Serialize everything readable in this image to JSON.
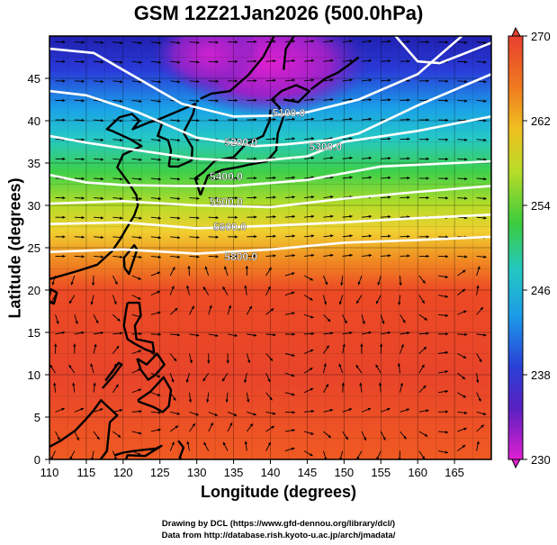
{
  "title": "GSM 12Z21Jan2026 (500.0hPa)",
  "x_axis": {
    "label": "Longitude (degrees)",
    "min": 110,
    "max": 170,
    "ticks": [
      "110",
      "115",
      "120",
      "125",
      "130",
      "135",
      "140",
      "145",
      "150",
      "155",
      "160",
      "165"
    ],
    "tick_values": [
      110,
      115,
      120,
      125,
      130,
      135,
      140,
      145,
      150,
      155,
      160,
      165
    ]
  },
  "y_axis": {
    "label": "Latitude (degrees)",
    "min": 0,
    "max": 50,
    "ticks": [
      "0",
      "5",
      "10",
      "15",
      "20",
      "25",
      "30",
      "35",
      "40",
      "45"
    ],
    "tick_values": [
      0,
      5,
      10,
      15,
      20,
      25,
      30,
      35,
      40,
      45
    ]
  },
  "colorbar": {
    "ticks": [
      "270",
      "262",
      "254",
      "246",
      "238",
      "230"
    ],
    "tick_values": [
      270,
      262,
      254,
      246,
      238,
      230
    ],
    "min": 230,
    "max": 270
  },
  "contour_labels": [
    {
      "text": "5100.0",
      "lon": 142.5,
      "lat": 40.5
    },
    {
      "text": "5200.0",
      "lon": 136.0,
      "lat": 37.0
    },
    {
      "text": "5300.0",
      "lon": 147.5,
      "lat": 36.5
    },
    {
      "text": "5400.0",
      "lon": 134.0,
      "lat": 33.0
    },
    {
      "text": "5500.0",
      "lon": 134.0,
      "lat": 30.0
    },
    {
      "text": "5600.0",
      "lon": 134.5,
      "lat": 27.0
    },
    {
      "text": "5800.0",
      "lon": 136.0,
      "lat": 23.5
    }
  ],
  "footer": {
    "line1": "Drawing by DCL (https://www.gfd-dennou.org/library/dcl/)",
    "line2": "Data from http://database.rish.kyoto-u.ac.jp/arch/jmadata/"
  }
}
